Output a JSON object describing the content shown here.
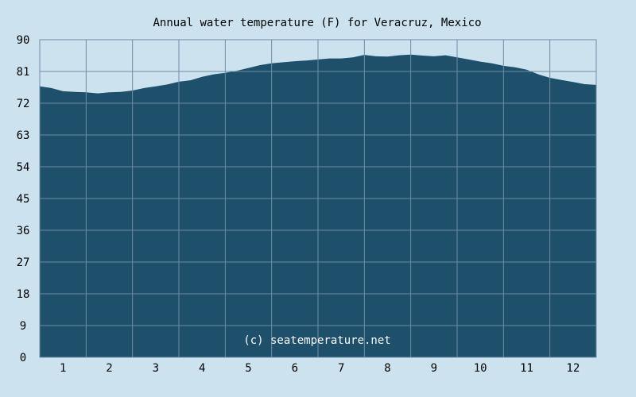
{
  "chart_data": {
    "type": "area",
    "title": "Annual water temperature (F) for Veracruz, Mexico",
    "xlabel": "",
    "ylabel": "",
    "credit": "(c) seatemperature.net",
    "x_ticks": [
      "1",
      "2",
      "3",
      "4",
      "5",
      "6",
      "7",
      "8",
      "9",
      "10",
      "11",
      "12"
    ],
    "ylim": [
      0,
      90
    ],
    "y_ticks": [
      0,
      9,
      18,
      27,
      36,
      45,
      54,
      63,
      72,
      81,
      90
    ],
    "grid": true,
    "colors": {
      "background": "#cce3ef",
      "area": "#1e4f6b",
      "grid": "#6c8ea5",
      "border": "#6c8ea5"
    },
    "series": [
      {
        "x": [
          0.5,
          0.75,
          1.0,
          1.25,
          1.5,
          1.75,
          2.0,
          2.25,
          2.5,
          2.75,
          3.0,
          3.25,
          3.5,
          3.75,
          4.0,
          4.25,
          4.5,
          4.75,
          5.0,
          5.25,
          5.5,
          5.75,
          6.0,
          6.25,
          6.5,
          6.75,
          7.0,
          7.25,
          7.5,
          7.75,
          8.0,
          8.25,
          8.5,
          8.75,
          9.0,
          9.25,
          9.5,
          9.75,
          10.0,
          10.25,
          10.5,
          10.75,
          11.0,
          11.25,
          11.5,
          11.75,
          12.0,
          12.25,
          12.5
        ],
        "values": [
          76.8,
          76.3,
          75.4,
          75.2,
          75.1,
          74.8,
          75.1,
          75.2,
          75.6,
          76.3,
          76.8,
          77.3,
          78.1,
          78.5,
          79.5,
          80.2,
          80.6,
          81.2,
          82.0,
          82.8,
          83.3,
          83.6,
          83.9,
          84.1,
          84.4,
          84.7,
          84.7,
          85.0,
          85.7,
          85.3,
          85.2,
          85.6,
          85.8,
          85.5,
          85.3,
          85.6,
          85.0,
          84.4,
          83.8,
          83.3,
          82.6,
          82.2,
          81.5,
          80.2,
          79.2,
          78.6,
          78.0,
          77.4,
          77.2
        ]
      }
    ]
  }
}
